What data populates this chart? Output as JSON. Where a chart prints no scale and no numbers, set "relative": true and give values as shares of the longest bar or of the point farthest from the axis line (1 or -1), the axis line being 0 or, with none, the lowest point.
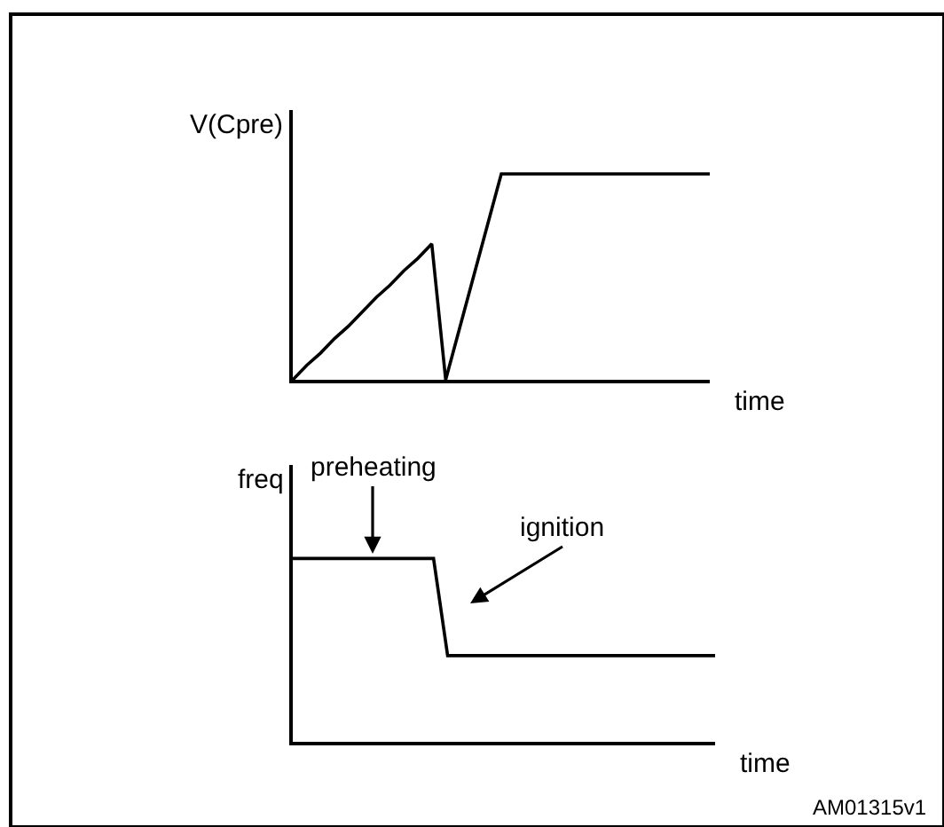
{
  "chart_data": [
    {
      "type": "line",
      "relative": true,
      "ylabel": "V(Cpre)",
      "xlabel": "time",
      "marker": "none",
      "line_style": "solid",
      "categories": [
        null,
        null,
        null,
        null,
        null,
        null,
        null,
        null,
        null,
        null,
        null,
        null,
        null,
        null,
        null,
        null,
        null,
        null,
        null,
        null,
        null,
        null,
        null,
        null,
        null,
        null,
        null,
        null,
        null,
        null,
        null
      ],
      "series": [
        {
          "color": "#000000",
          "values": [
            0,
            0.07,
            0.13,
            0.2,
            0.26,
            0.33,
            0.4,
            0.46,
            0.53,
            0.59,
            0.66,
            0,
            0.25,
            0.5,
            0.75,
            1,
            1,
            1,
            1,
            1,
            1,
            1,
            1,
            1,
            1,
            1,
            1,
            1,
            1,
            1,
            1
          ]
        }
      ]
    },
    {
      "type": "line",
      "relative": true,
      "ylabel": "freq",
      "xlabel": "time",
      "marker": "none",
      "line_style": "solid",
      "categories": [
        null,
        null,
        null,
        null,
        null,
        null,
        null,
        null,
        null,
        null,
        null,
        null,
        null,
        null,
        null,
        null,
        null,
        null,
        null,
        null,
        null,
        null,
        null,
        null,
        null,
        null,
        null,
        null,
        null,
        null,
        null
      ],
      "series": [
        {
          "color": "#000000",
          "values": [
            1,
            1,
            1,
            1,
            1,
            1,
            1,
            1,
            1,
            1,
            1,
            0.47,
            0.47,
            0.47,
            0.47,
            0.47,
            0.47,
            0.47,
            0.47,
            0.47,
            0.47,
            0.47,
            0.47,
            0.47,
            0.47,
            0.47,
            0.47,
            0.47,
            0.47,
            0.47,
            0.47
          ]
        }
      ],
      "annotations": [
        "preheating",
        "ignition",
        "AM01315v1"
      ]
    }
  ]
}
